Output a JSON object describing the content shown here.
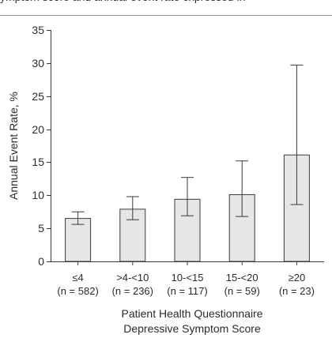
{
  "chart_data": {
    "type": "bar",
    "title": "",
    "xlabel": [
      "Patient Health Questionnaire",
      "Depressive Symptom Score"
    ],
    "ylabel": "Annual Event Rate, %",
    "ylim": [
      0,
      35
    ],
    "yticks": [
      0,
      5,
      10,
      15,
      20,
      25,
      30,
      35
    ],
    "grid": false,
    "categories": [
      "≤4",
      ">4-<10",
      "10-<15",
      "15-<20",
      "≥20"
    ],
    "category_counts": [
      "(n = 582)",
      "(n = 236)",
      "(n = 117)",
      "(n = 59)",
      "(n = 23)"
    ],
    "values": [
      6.5,
      7.9,
      9.4,
      10.1,
      16.1
    ],
    "error_low": [
      5.6,
      6.3,
      6.9,
      6.8,
      8.6
    ],
    "error_high": [
      7.5,
      9.8,
      12.7,
      15.2,
      29.7
    ],
    "colors": {
      "bar_fill": "#e6e6e6",
      "bar_stroke": "#3a3a3a",
      "axis": "#3a3a3a"
    }
  },
  "header_text": "ymptom score and annual event rate expressed in"
}
